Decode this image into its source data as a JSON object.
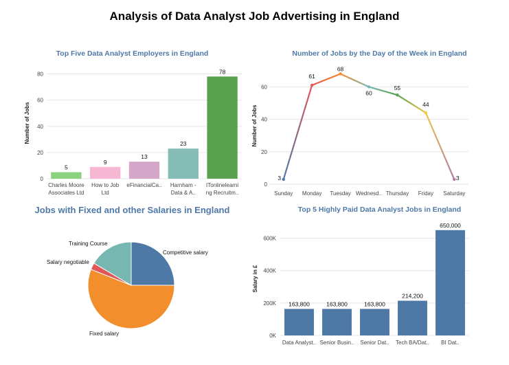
{
  "page": {
    "title": "Analysis of Data Analyst Job Advertising in England"
  },
  "chart_data": [
    {
      "type": "bar",
      "title": "Top Five Data Analyst Employers in England",
      "ylabel": "Number of Jobs",
      "xlabel": "",
      "categories": [
        [
          "Charles Moore",
          "Associates Ltd"
        ],
        [
          "How to Job",
          "Ltd"
        ],
        [
          "eFinancialCa.."
        ],
        [
          "Harnham -",
          "Data & A.."
        ],
        [
          "ITonlinelearni",
          "ng Recruitm.."
        ]
      ],
      "values": [
        5,
        9,
        13,
        23,
        78
      ],
      "value_labels": [
        "5",
        "9",
        "13",
        "23",
        "78"
      ],
      "colors": [
        "#8cd17d",
        "#f7b6d2",
        "#d4a6c8",
        "#86bcb6",
        "#59a14f"
      ],
      "ylim": [
        0,
        85
      ],
      "yticks": [
        0,
        20,
        40,
        60,
        80
      ],
      "ytick_labels": [
        "0",
        "20",
        "40",
        "60",
        "80"
      ],
      "grid": true
    },
    {
      "type": "line",
      "title": "Number of Jobs by the Day of the Week in England",
      "ylabel": "Number of Jobs",
      "xlabel": "",
      "categories": [
        "Sunday",
        "Monday",
        "Tuesday",
        "Wednesd..",
        "Thursday",
        "Friday",
        "Saturday"
      ],
      "values": [
        3,
        61,
        68,
        60,
        55,
        44,
        3
      ],
      "value_labels": [
        "3",
        "61",
        "68",
        "60",
        "55",
        "44",
        "3"
      ],
      "point_colors": [
        "#4e79a7",
        "#e15759",
        "#f28e2b",
        "#76b7b2",
        "#59a14f",
        "#edc948",
        "#b07aa1"
      ],
      "ylim": [
        0,
        72
      ],
      "yticks": [
        0,
        20,
        40,
        60
      ],
      "ytick_labels": [
        "0",
        "20",
        "40",
        "60"
      ],
      "grid": true
    },
    {
      "type": "pie",
      "title": "Jobs with Fixed and other Salaries in England",
      "slices": [
        {
          "label": "Competitive salary",
          "value": 25,
          "color": "#4e79a7"
        },
        {
          "label": "Fixed salary",
          "value": 56,
          "color": "#f28e2b"
        },
        {
          "label": "Salary negotiable",
          "value": 2.5,
          "color": "#e15759"
        },
        {
          "label": "Training Course",
          "value": 16.5,
          "color": "#76b7b2"
        }
      ]
    },
    {
      "type": "bar",
      "title": "Top 5 Highly Paid Data Analyst Jobs in England",
      "ylabel": "Salary in  £",
      "xlabel": "",
      "categories": [
        "Data Analyst..",
        "Senior Busin..",
        "Senior Dat..",
        "Tech BA/Dat..",
        "BI Dat.."
      ],
      "values": [
        163800,
        163800,
        163800,
        214200,
        650000
      ],
      "value_labels": [
        "163,800",
        "163,800",
        "163,800",
        "214,200",
        "650,000"
      ],
      "color": "#4e79a7",
      "ylim": [
        0,
        700000
      ],
      "yticks": [
        0,
        200000,
        400000,
        600000
      ],
      "ytick_labels": [
        "0K",
        "200K",
        "400K",
        "600K"
      ],
      "grid": true
    }
  ]
}
